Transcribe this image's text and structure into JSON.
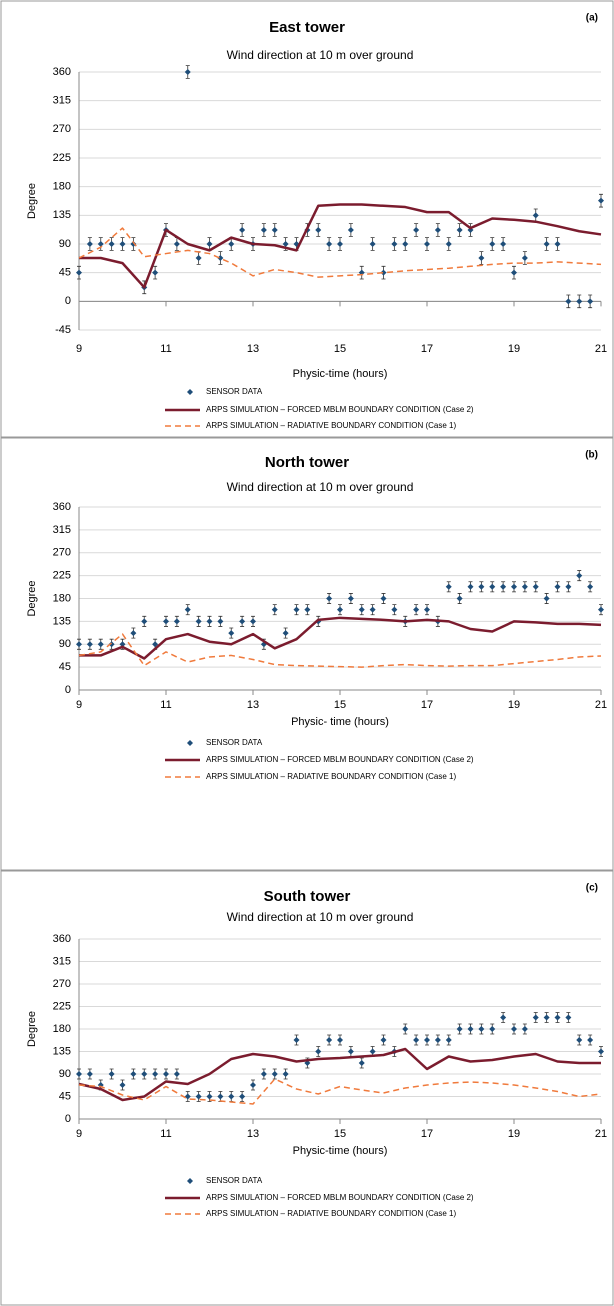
{
  "chart_data": [
    {
      "type": "line",
      "title": "East tower",
      "label": "(a)",
      "subtitle": "Wind direction at 10 m over ground",
      "x_label": "Physic-time (hours)",
      "y_label": "Degree",
      "xlim": [
        9,
        21
      ],
      "xticks": [
        9,
        11,
        13,
        15,
        17,
        19,
        21
      ],
      "ylim": [
        -45,
        360
      ],
      "yticks": [
        -45,
        0,
        45,
        90,
        135,
        180,
        225,
        270,
        315,
        360
      ],
      "grid": true,
      "series": [
        {
          "name": "SENSOR DATA",
          "style": "errorbar",
          "color": "#1f4e79",
          "error": 10,
          "x": [
            9,
            9.25,
            9.5,
            9.75,
            10,
            10.25,
            10.5,
            10.75,
            11,
            11.25,
            11.5,
            11.75,
            12,
            12.25,
            12.5,
            12.75,
            13,
            13.25,
            13.5,
            13.75,
            14,
            14.25,
            14.5,
            14.75,
            15,
            15.25,
            15.5,
            15.75,
            16,
            16.25,
            16.5,
            16.75,
            17,
            17.25,
            17.5,
            17.75,
            18,
            18.25,
            18.5,
            18.75,
            19,
            19.25,
            19.5,
            19.75,
            20,
            20.25,
            20.5,
            20.75,
            21
          ],
          "values": [
            45,
            90,
            90,
            90,
            90,
            90,
            22,
            45,
            112,
            90,
            360,
            68,
            90,
            68,
            90,
            112,
            90,
            112,
            112,
            90,
            90,
            112,
            112,
            90,
            90,
            112,
            45,
            90,
            45,
            90,
            90,
            112,
            90,
            112,
            90,
            112,
            112,
            68,
            90,
            90,
            45,
            68,
            135,
            90,
            90,
            0,
            0,
            0,
            158
          ]
        },
        {
          "name": "ARPS SIMULATION – FORCED MBLM BOUNDARY CONDITION (Case 2)",
          "style": "solid",
          "color": "#7b1c2e",
          "x": [
            9,
            9.5,
            10,
            10.5,
            11,
            11.5,
            12,
            12.5,
            13,
            13.5,
            14,
            14.5,
            15,
            15.5,
            16,
            16.5,
            17,
            17.5,
            18,
            18.5,
            19,
            19.5,
            20,
            20.5,
            21
          ],
          "values": [
            68,
            68,
            60,
            22,
            112,
            90,
            80,
            100,
            90,
            88,
            80,
            150,
            152,
            152,
            150,
            148,
            140,
            140,
            115,
            130,
            128,
            125,
            118,
            110,
            105
          ]
        },
        {
          "name": "ARPS SIMULATION – RADIATIVE BOUNDARY CONDITION (Case 1)",
          "style": "dashed",
          "color": "#f07a3c",
          "x": [
            9,
            9.5,
            10,
            10.5,
            11,
            11.5,
            12,
            12.5,
            13,
            13.5,
            14,
            14.5,
            15,
            15.5,
            16,
            16.5,
            17,
            17.5,
            18,
            18.5,
            19,
            19.5,
            20,
            20.5,
            21
          ],
          "values": [
            68,
            85,
            115,
            70,
            75,
            80,
            75,
            60,
            40,
            50,
            45,
            38,
            40,
            42,
            45,
            48,
            50,
            52,
            55,
            58,
            60,
            60,
            62,
            60,
            58
          ]
        }
      ]
    },
    {
      "type": "line",
      "title": "North tower",
      "label": "(b)",
      "subtitle": "Wind direction at 10 m over ground",
      "x_label": "Physic- time (hours)",
      "y_label": "Degree",
      "xlim": [
        9,
        21
      ],
      "xticks": [
        9,
        11,
        13,
        15,
        17,
        19,
        21
      ],
      "ylim": [
        0,
        360
      ],
      "yticks": [
        0,
        45,
        90,
        135,
        180,
        225,
        270,
        315,
        360
      ],
      "grid": true,
      "series": [
        {
          "name": "SENSOR DATA",
          "style": "errorbar",
          "color": "#1f4e79",
          "error": 10,
          "x": [
            9,
            9.25,
            9.5,
            9.75,
            10,
            10.25,
            10.5,
            10.75,
            11,
            11.25,
            11.5,
            11.75,
            12,
            12.25,
            12.5,
            12.75,
            13,
            13.25,
            13.5,
            13.75,
            14,
            14.25,
            14.5,
            14.75,
            15,
            15.25,
            15.5,
            15.75,
            16,
            16.25,
            16.5,
            16.75,
            17,
            17.25,
            17.5,
            17.75,
            18,
            18.25,
            18.5,
            18.75,
            19,
            19.25,
            19.5,
            19.75,
            20,
            20.25,
            20.5,
            20.75,
            21
          ],
          "values": [
            90,
            90,
            90,
            90,
            90,
            112,
            135,
            90,
            135,
            135,
            158,
            135,
            135,
            135,
            112,
            135,
            135,
            90,
            158,
            112,
            158,
            158,
            135,
            180,
            158,
            180,
            158,
            158,
            180,
            158,
            135,
            158,
            158,
            135,
            203,
            180,
            203,
            203,
            203,
            203,
            203,
            203,
            203,
            180,
            203,
            203,
            225,
            203,
            158
          ]
        },
        {
          "name": "ARPS SIMULATION – FORCED MBLM BOUNDARY CONDITION (Case 2)",
          "style": "solid",
          "color": "#7b1c2e",
          "x": [
            9,
            9.5,
            10,
            10.5,
            11,
            11.5,
            12,
            12.5,
            13,
            13.5,
            14,
            14.5,
            15,
            15.5,
            16,
            16.5,
            17,
            17.5,
            18,
            18.5,
            19,
            19.5,
            20,
            20.5,
            21
          ],
          "values": [
            68,
            68,
            85,
            62,
            100,
            110,
            95,
            90,
            110,
            82,
            100,
            138,
            142,
            140,
            138,
            135,
            138,
            135,
            120,
            115,
            135,
            133,
            130,
            130,
            128
          ]
        },
        {
          "name": "ARPS SIMULATION – RADIATIVE BOUNDARY CONDITION (Case 1)",
          "style": "dashed",
          "color": "#f07a3c",
          "x": [
            9,
            9.5,
            10,
            10.5,
            11,
            11.5,
            12,
            12.5,
            13,
            13.5,
            14,
            14.5,
            15,
            15.5,
            16,
            16.5,
            17,
            17.5,
            18,
            18.5,
            19,
            19.5,
            20,
            20.5,
            21
          ],
          "values": [
            68,
            75,
            110,
            48,
            75,
            55,
            65,
            68,
            60,
            50,
            48,
            47,
            46,
            45,
            48,
            50,
            48,
            47,
            48,
            48,
            52,
            56,
            60,
            65,
            67
          ]
        }
      ]
    },
    {
      "type": "line",
      "title": "South tower",
      "label": "(c)",
      "subtitle": "Wind direction at 10 m over ground",
      "x_label": "Physic-time (hours)",
      "y_label": "Degree",
      "xlim": [
        9,
        21
      ],
      "xticks": [
        9,
        11,
        13,
        15,
        17,
        19,
        21
      ],
      "ylim": [
        0,
        360
      ],
      "yticks": [
        0,
        45,
        90,
        135,
        180,
        225,
        270,
        315,
        360
      ],
      "grid": true,
      "series": [
        {
          "name": "SENSOR DATA",
          "style": "errorbar",
          "color": "#1f4e79",
          "error": 10,
          "x": [
            9,
            9.25,
            9.5,
            9.75,
            10,
            10.25,
            10.5,
            10.75,
            11,
            11.25,
            11.5,
            11.75,
            12,
            12.25,
            12.5,
            12.75,
            13,
            13.25,
            13.5,
            13.75,
            14,
            14.25,
            14.5,
            14.75,
            15,
            15.25,
            15.5,
            15.75,
            16,
            16.25,
            16.5,
            16.75,
            17,
            17.25,
            17.5,
            17.75,
            18,
            18.25,
            18.5,
            18.75,
            19,
            19.25,
            19.5,
            19.75,
            20,
            20.25,
            20.5,
            20.75,
            21
          ],
          "values": [
            90,
            90,
            68,
            90,
            68,
            90,
            90,
            90,
            90,
            90,
            45,
            45,
            45,
            45,
            45,
            45,
            68,
            90,
            90,
            90,
            158,
            112,
            135,
            158,
            158,
            135,
            112,
            135,
            158,
            135,
            180,
            158,
            158,
            158,
            158,
            180,
            180,
            180,
            180,
            203,
            180,
            180,
            203,
            203,
            203,
            203,
            158,
            158,
            135
          ]
        },
        {
          "name": "ARPS SIMULATION – FORCED MBLM BOUNDARY CONDITION (Case 2)",
          "style": "solid",
          "color": "#7b1c2e",
          "x": [
            9,
            9.5,
            10,
            10.5,
            11,
            11.5,
            12,
            12.5,
            13,
            13.5,
            14,
            14.5,
            15,
            15.5,
            16,
            16.5,
            17,
            17.5,
            18,
            18.5,
            19,
            19.5,
            20,
            20.5,
            21
          ],
          "values": [
            70,
            60,
            38,
            45,
            75,
            70,
            90,
            120,
            130,
            125,
            115,
            120,
            122,
            125,
            128,
            140,
            100,
            125,
            115,
            118,
            125,
            130,
            115,
            112,
            112
          ]
        },
        {
          "name": "ARPS SIMULATION – RADIATIVE BOUNDARY CONDITION (Case 1)",
          "style": "dashed",
          "color": "#f07a3c",
          "x": [
            9,
            9.5,
            10,
            10.5,
            11,
            11.5,
            12,
            12.5,
            13,
            13.5,
            14,
            14.5,
            15,
            15.5,
            16,
            16.5,
            17,
            17.5,
            18,
            18.5,
            19,
            19.5,
            20,
            20.5,
            21
          ],
          "values": [
            68,
            65,
            48,
            38,
            65,
            40,
            38,
            34,
            30,
            80,
            60,
            50,
            65,
            58,
            52,
            62,
            68,
            72,
            74,
            72,
            68,
            62,
            55,
            45,
            50
          ]
        }
      ]
    }
  ]
}
